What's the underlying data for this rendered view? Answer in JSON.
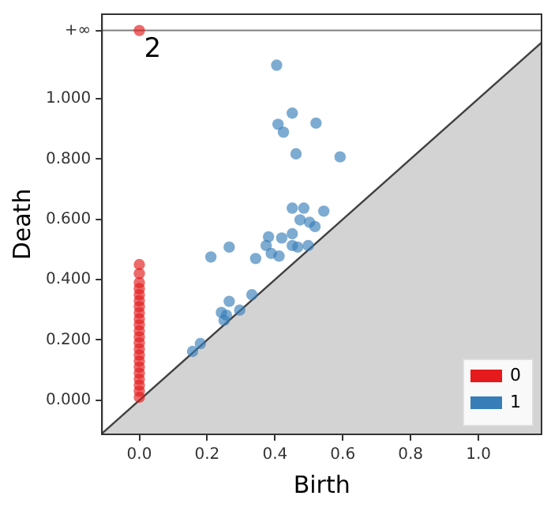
{
  "chart_data": {
    "type": "scatter",
    "xlabel": "Birth",
    "ylabel": "Death",
    "xlim": [
      -0.11,
      1.186
    ],
    "ylim": [
      -0.113,
      1.28
    ],
    "xticks": [
      {
        "value": 0,
        "label": "0.0"
      },
      {
        "value": 0.2,
        "label": "0.2"
      },
      {
        "value": 0.4,
        "label": "0.4"
      },
      {
        "value": 0.6,
        "label": "0.6"
      },
      {
        "value": 0.8,
        "label": "0.8"
      },
      {
        "value": 1,
        "label": "1.0"
      }
    ],
    "yticks": [
      {
        "value": 0,
        "label": "0.000"
      },
      {
        "value": 0.2,
        "label": "0.200"
      },
      {
        "value": 0.4,
        "label": "0.400"
      },
      {
        "value": 0.6,
        "label": "0.600"
      },
      {
        "value": 0.8,
        "label": "0.800"
      },
      {
        "value": 1,
        "label": "1.000"
      },
      {
        "value": 1.226,
        "label": "+∞"
      }
    ],
    "grid": false,
    "legend": "bottom right",
    "marker": "circle",
    "ref_lines": [
      {
        "axis": "y",
        "value": 1.226,
        "color": "#808080"
      }
    ],
    "annotations": [
      {
        "text": "2",
        "x": 0,
        "y": 1.226
      }
    ],
    "series": [
      {
        "type": "area",
        "marker": "none",
        "color": "#d3d3d3",
        "x": [
          -0.11,
          1.186
        ],
        "values": [
          -0.11,
          1.186
        ]
      },
      {
        "name": "0",
        "color": "#e41a1c",
        "x": [
          0,
          0,
          0,
          0,
          0,
          0,
          0,
          0,
          0,
          0,
          0,
          0,
          0,
          0,
          0,
          0,
          0,
          0,
          0,
          0,
          0,
          0,
          0
        ],
        "values": [
          0.01,
          0.03,
          0.05,
          0.07,
          0.09,
          0.11,
          0.13,
          0.15,
          0.17,
          0.19,
          0.21,
          0.23,
          0.25,
          0.27,
          0.29,
          0.31,
          0.33,
          0.35,
          0.37,
          0.39,
          0.42,
          0.45,
          1.226
        ]
      },
      {
        "name": "1",
        "color": "#377eb8",
        "x": [
          0.405,
          0.451,
          0.409,
          0.425,
          0.521,
          0.462,
          0.592,
          0.451,
          0.485,
          0.544,
          0.474,
          0.502,
          0.518,
          0.381,
          0.42,
          0.451,
          0.265,
          0.374,
          0.451,
          0.467,
          0.498,
          0.343,
          0.412,
          0.389,
          0.211,
          0.265,
          0.242,
          0.332,
          0.257,
          0.296,
          0.25,
          0.18,
          0.157
        ],
        "values": [
          1.111,
          0.952,
          0.915,
          0.889,
          0.919,
          0.817,
          0.807,
          0.637,
          0.637,
          0.627,
          0.598,
          0.59,
          0.576,
          0.542,
          0.538,
          0.552,
          0.508,
          0.513,
          0.513,
          0.508,
          0.513,
          0.47,
          0.478,
          0.487,
          0.475,
          0.328,
          0.291,
          0.35,
          0.282,
          0.299,
          0.265,
          0.188,
          0.162
        ]
      }
    ]
  }
}
